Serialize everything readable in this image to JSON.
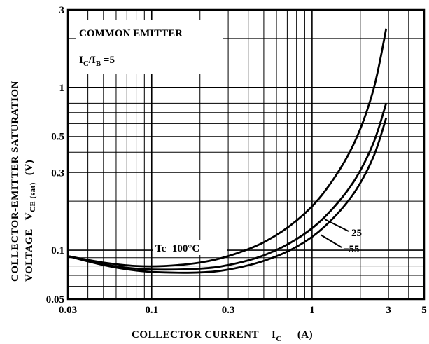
{
  "chart_data": {
    "type": "line",
    "xscale": "log",
    "yscale": "log",
    "xlim": [
      0.03,
      5
    ],
    "ylim": [
      0.05,
      3
    ],
    "grid": true,
    "x_ticks": [
      {
        "value": 0.03,
        "label": "0.03"
      },
      {
        "value": 0.1,
        "label": "0.1"
      },
      {
        "value": 0.3,
        "label": "0.3"
      },
      {
        "value": 1,
        "label": "1"
      },
      {
        "value": 3,
        "label": "3"
      },
      {
        "value": 5,
        "label": "5"
      }
    ],
    "y_ticks": [
      {
        "value": 0.05,
        "label": "0.05"
      },
      {
        "value": 0.1,
        "label": "0.1"
      },
      {
        "value": 0.3,
        "label": "0.3"
      },
      {
        "value": 0.5,
        "label": "0.5"
      },
      {
        "value": 1,
        "label": "1"
      },
      {
        "value": 3,
        "label": "3"
      }
    ],
    "xlabel": {
      "main": "COLLECTOR CURRENT",
      "symbol": "I",
      "sub": "C",
      "unit": "(A)"
    },
    "ylabel": {
      "line1": "COLLECTOR-EMITTER SATURATION",
      "line2_main": "VOLTAGE",
      "symbol": "V",
      "sub": "CE (sat)",
      "unit": "(V)"
    },
    "annotations": {
      "box_line1": "COMMON EMITTER",
      "box_line2": {
        "i1": "I",
        "sub1": "C",
        "slash": "/",
        "i2": "I",
        "sub2": "B",
        "rest": " =5"
      },
      "series_label_top": "Tc=100°C",
      "series_label_mid": "25",
      "series_label_bot": "−55"
    },
    "series": [
      {
        "label_key": "series_label_top",
        "x": [
          0.03,
          0.05,
          0.08,
          0.12,
          0.2,
          0.3,
          0.5,
          0.8,
          1.2,
          1.8,
          2.4,
          2.9
        ],
        "y": [
          0.092,
          0.084,
          0.08,
          0.08,
          0.084,
          0.092,
          0.112,
          0.152,
          0.23,
          0.44,
          0.95,
          2.3
        ]
      },
      {
        "label_key": "series_label_mid",
        "x": [
          0.03,
          0.05,
          0.08,
          0.12,
          0.2,
          0.3,
          0.5,
          0.8,
          1.2,
          1.8,
          2.4,
          2.9
        ],
        "y": [
          0.092,
          0.082,
          0.077,
          0.076,
          0.077,
          0.081,
          0.093,
          0.117,
          0.16,
          0.26,
          0.45,
          0.8
        ]
      },
      {
        "label_key": "series_label_bot",
        "x": [
          0.03,
          0.05,
          0.08,
          0.12,
          0.2,
          0.3,
          0.5,
          0.8,
          1.2,
          1.8,
          2.4,
          2.9
        ],
        "y": [
          0.092,
          0.081,
          0.075,
          0.073,
          0.073,
          0.076,
          0.086,
          0.105,
          0.14,
          0.22,
          0.37,
          0.65
        ]
      }
    ]
  }
}
